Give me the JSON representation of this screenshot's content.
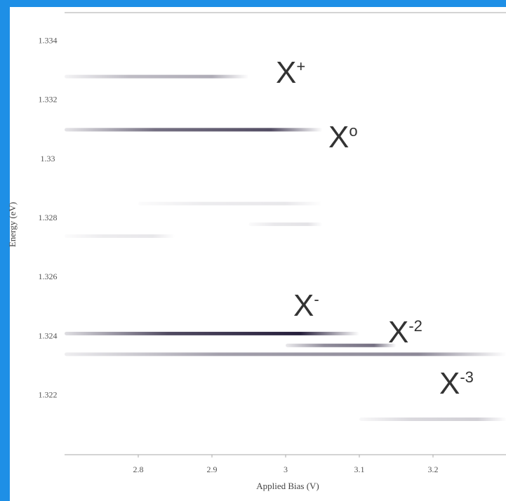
{
  "chart_data": {
    "type": "spectral-lines",
    "x_label": "Applied Bias (V)",
    "y_label": "Energy (eV)",
    "xlim": [
      2.7,
      3.3
    ],
    "ylim": [
      1.32,
      1.335
    ],
    "xticks": [
      2.8,
      2.9,
      3,
      3.1,
      3.2
    ],
    "yticks": [
      1.322,
      1.324,
      1.326,
      1.328,
      1.33,
      1.332,
      1.334
    ],
    "color": "#1a1230",
    "lines": [
      {
        "energy": 1.3328,
        "x": [
          2.7,
          2.95
        ],
        "intensity": 0.35
      },
      {
        "energy": 1.331,
        "x": [
          2.7,
          3.05
        ],
        "intensity": 0.75
      },
      {
        "energy": 1.3285,
        "x": [
          2.8,
          3.05
        ],
        "intensity": 0.1
      },
      {
        "energy": 1.3278,
        "x": [
          2.95,
          3.05
        ],
        "intensity": 0.12
      },
      {
        "energy": 1.3274,
        "x": [
          2.7,
          2.85
        ],
        "intensity": 0.1
      },
      {
        "energy": 1.3241,
        "x": [
          2.7,
          3.1
        ],
        "intensity": 0.95
      },
      {
        "energy": 1.3237,
        "x": [
          3.0,
          3.15
        ],
        "intensity": 0.6
      },
      {
        "energy": 1.3234,
        "x": [
          2.7,
          3.3
        ],
        "intensity": 0.5
      },
      {
        "energy": 1.3212,
        "x": [
          3.1,
          3.3
        ],
        "intensity": 0.2
      }
    ],
    "annotations": [
      {
        "text": "X",
        "sup": "+"
      },
      {
        "text": "X",
        "sup": "o"
      },
      {
        "text": "X",
        "sup": "-"
      },
      {
        "text": "X",
        "sup": "-2"
      },
      {
        "text": "X",
        "sup": "-3"
      }
    ]
  }
}
